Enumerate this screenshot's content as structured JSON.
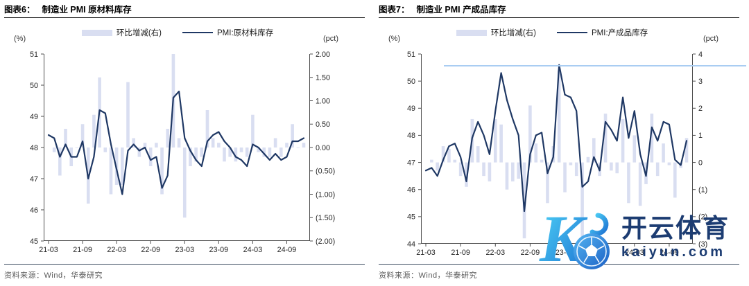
{
  "source_note": "资料来源：Wind，华泰研究",
  "watermark": {
    "brand_cn": "开云体育",
    "domain": "kaiyun.com",
    "logo": "kaiyun-k-and-soccer-ball"
  },
  "colors": {
    "pmi_line": "#1F3864",
    "mom_bar": "#D9DEF1",
    "title_rule": "#1A1A1A",
    "footer_rule": "#3A4A5E",
    "source_text": "#595959",
    "watermark_navy": "#1C3C72",
    "watermark_cyan": "#3EC7F4",
    "watermark_blue": "#1D72D2"
  },
  "charts": [
    {
      "title_prefix": "图表6：",
      "title": "制造业 PMI 原材料库存",
      "legend_bar": "环比增减(右)",
      "legend_line": "PMI:原材料库存",
      "left_axis_unit": "(%)",
      "right_axis_unit": "(pct)",
      "chart_data": {
        "type": "bar+line",
        "x": [
          "21-03",
          "21-04",
          "21-05",
          "21-06",
          "21-07",
          "21-08",
          "21-09",
          "21-10",
          "21-11",
          "21-12",
          "22-01",
          "22-02",
          "22-03",
          "22-04",
          "22-05",
          "22-06",
          "22-07",
          "22-08",
          "22-09",
          "22-10",
          "22-11",
          "22-12",
          "23-01",
          "23-02",
          "23-03",
          "23-04",
          "23-05",
          "23-06",
          "23-07",
          "23-08",
          "23-09",
          "23-10",
          "23-11",
          "23-12",
          "24-01",
          "24-02",
          "24-03",
          "24-04",
          "24-05",
          "24-06",
          "24-07",
          "24-08",
          "24-09",
          "24-10",
          "24-11",
          "24-12"
        ],
        "x_tick_indices": [
          0,
          6,
          12,
          18,
          24,
          30,
          36,
          42
        ],
        "x_tick_labels": [
          "21-03",
          "21-09",
          "22-03",
          "22-09",
          "23-03",
          "23-09",
          "24-03",
          "24-09"
        ],
        "left_axis": {
          "min": 45,
          "max": 51,
          "tick_values": [
            51,
            50,
            49,
            48,
            47,
            46,
            45
          ],
          "tick_labels": [
            "51",
            "50",
            "49",
            "48",
            "47",
            "46",
            "45"
          ]
        },
        "right_axis": {
          "min": -2,
          "max": 2,
          "tick_values": [
            2,
            1.5,
            1,
            0.5,
            0,
            -0.5,
            -1,
            -1.5,
            -2
          ],
          "tick_labels": [
            "2.00",
            "1.50",
            "1.00",
            "0.50",
            "0.00",
            "(0.50)",
            "(1.00)",
            "(1.50)",
            "(2.00)"
          ]
        },
        "series": [
          {
            "name": "环比增减(右)",
            "type": "bar",
            "axis": "right",
            "values": [
              null,
              -0.1,
              -0.6,
              0.4,
              -0.4,
              0.0,
              0.5,
              -1.2,
              0.7,
              1.5,
              -0.1,
              -1.0,
              -0.8,
              -0.8,
              1.4,
              0.2,
              -0.2,
              0.1,
              -0.4,
              0.1,
              -1.0,
              0.4,
              2.5,
              0.2,
              -1.5,
              -0.4,
              -0.3,
              -0.2,
              0.8,
              0.2,
              0.1,
              -0.3,
              -0.2,
              -0.3,
              -0.1,
              -0.2,
              0.7,
              -0.1,
              -0.2,
              -0.2,
              0.2,
              -0.2,
              0.1,
              0.5,
              0.0,
              0.1
            ]
          },
          {
            "name": "PMI:原材料库存",
            "type": "line",
            "axis": "left",
            "values": [
              48.4,
              48.3,
              47.7,
              48.1,
              47.7,
              47.7,
              48.2,
              47.0,
              47.7,
              49.2,
              49.1,
              48.1,
              47.3,
              46.5,
              47.9,
              48.1,
              47.9,
              48.0,
              47.6,
              47.7,
              46.7,
              47.1,
              49.6,
              49.8,
              48.3,
              47.9,
              47.6,
              47.4,
              48.2,
              48.4,
              48.5,
              48.2,
              48.0,
              47.7,
              47.6,
              47.4,
              48.1,
              48.0,
              47.8,
              47.6,
              47.8,
              47.6,
              47.7,
              48.2,
              48.2,
              48.3
            ]
          }
        ]
      }
    },
    {
      "title_prefix": "图表7：",
      "title": "制造业 PMI 产成品库存",
      "legend_bar": "环比增减(右)",
      "legend_line": "PMI:产成品库存",
      "left_axis_unit": "(%)",
      "right_axis_unit": "(pct)",
      "chart_data": {
        "type": "bar+line",
        "x": [
          "21-03",
          "21-04",
          "21-05",
          "21-06",
          "21-07",
          "21-08",
          "21-09",
          "21-10",
          "21-11",
          "21-12",
          "22-01",
          "22-02",
          "22-03",
          "22-04",
          "22-05",
          "22-06",
          "22-07",
          "22-08",
          "22-09",
          "22-10",
          "22-11",
          "22-12",
          "23-01",
          "23-02",
          "23-03",
          "23-04",
          "23-05",
          "23-06",
          "23-07",
          "23-08",
          "23-09",
          "23-10",
          "23-11",
          "23-12",
          "24-01",
          "24-02",
          "24-03",
          "24-04",
          "24-05",
          "24-06",
          "24-07",
          "24-08",
          "24-09",
          "24-10",
          "24-11",
          "24-12"
        ],
        "x_tick_indices": [
          0,
          6,
          12,
          18,
          24,
          30,
          36,
          42
        ],
        "x_tick_labels": [
          "21-03",
          "21-09",
          "22-03",
          "22-09",
          "23-03",
          "23-09",
          "24-03",
          "24-09"
        ],
        "left_axis": {
          "min": 44,
          "max": 51,
          "tick_values": [
            51,
            50,
            49,
            48,
            47,
            46,
            45,
            44
          ],
          "tick_labels": [
            "51",
            "50",
            "49",
            "48",
            "47",
            "46",
            "45",
            "44"
          ]
        },
        "right_axis": {
          "min": -3,
          "max": 4,
          "tick_values": [
            4,
            3,
            2,
            1,
            0,
            -1,
            -2,
            -3
          ],
          "tick_labels": [
            "4",
            "3",
            "2",
            "1",
            "0",
            "(1)",
            "(2)",
            "(3)"
          ]
        },
        "series": [
          {
            "name": "环比增减(右)",
            "type": "bar",
            "axis": "right",
            "values": [
              null,
              0.1,
              -0.3,
              0.6,
              0.5,
              0.1,
              -0.5,
              -0.9,
              1.6,
              0.6,
              -0.5,
              -0.7,
              1.6,
              1.4,
              -1.0,
              -0.7,
              -0.6,
              -2.8,
              2.1,
              0.7,
              0.1,
              -1.5,
              0.6,
              3.4,
              -1.1,
              -0.1,
              -0.5,
              -2.8,
              0.2,
              0.9,
              -0.5,
              1.8,
              -0.3,
              -0.4,
              1.6,
              -1.5,
              1.0,
              -1.6,
              -0.8,
              1.8,
              -0.5,
              0.7,
              -0.1,
              -1.3,
              -0.2,
              0.9
            ]
          },
          {
            "name": "PMI:产成品库存",
            "type": "line",
            "axis": "left",
            "values": [
              46.7,
              46.8,
              46.5,
              47.1,
              47.6,
              47.7,
              47.2,
              46.3,
              47.9,
              48.5,
              48.0,
              47.3,
              48.9,
              50.3,
              49.3,
              48.6,
              48.0,
              45.2,
              47.3,
              48.0,
              48.1,
              46.6,
              47.2,
              50.6,
              49.5,
              49.4,
              48.9,
              46.1,
              46.3,
              47.2,
              46.7,
              48.5,
              48.2,
              47.8,
              49.4,
              47.9,
              48.9,
              47.3,
              46.5,
              48.3,
              47.8,
              48.5,
              48.4,
              47.1,
              46.9,
              47.8
            ]
          }
        ]
      }
    }
  ]
}
